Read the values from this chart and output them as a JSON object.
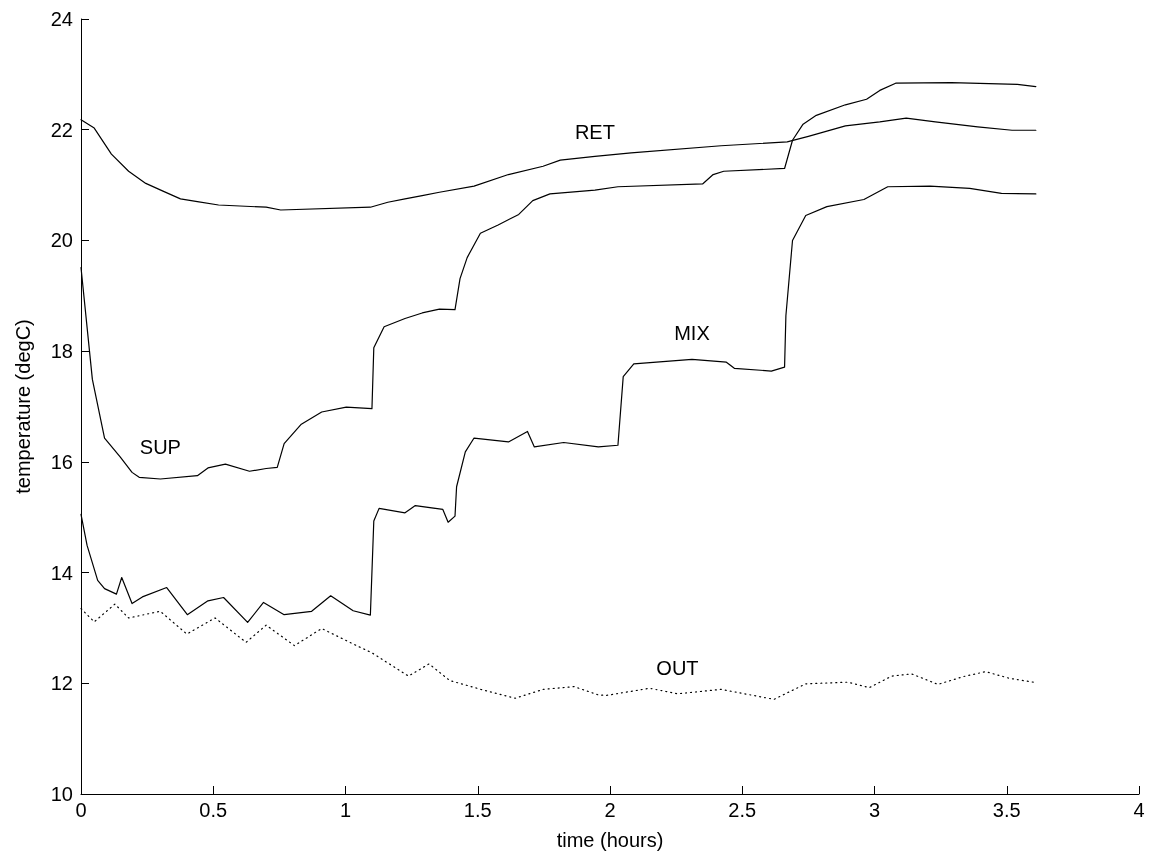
{
  "chart_data": {
    "type": "line",
    "xlabel": "time (hours)",
    "ylabel": "temperature (degC)",
    "xlim": [
      0,
      4
    ],
    "xticks": [
      0,
      0.5,
      1,
      1.5,
      2,
      2.5,
      3,
      3.5,
      4
    ],
    "ylim": [
      10,
      24
    ],
    "yticks": [
      10,
      12,
      14,
      16,
      18,
      20,
      22,
      24
    ],
    "grid": false,
    "legend": false,
    "marker": "none",
    "series": [
      {
        "name": "RET",
        "color": "#000000",
        "line_style": "solid",
        "x": [
          0,
          0.05,
          0.115,
          0.18,
          0.245,
          0.31,
          0.376,
          0.44,
          0.52,
          0.7,
          0.755,
          1.094,
          1.16,
          1.225,
          1.29,
          1.355,
          1.486,
          1.616,
          1.747,
          1.812,
          1.943,
          2.08,
          2.42,
          2.67,
          2.75,
          2.89,
          3.02,
          3.12,
          3.23,
          3.39,
          3.52,
          3.61
        ],
        "values": [
          22.18,
          22.03,
          21.56,
          21.25,
          21.03,
          20.89,
          20.75,
          20.7,
          20.64,
          20.6,
          20.55,
          20.6,
          20.69,
          20.75,
          20.81,
          20.87,
          20.98,
          21.19,
          21.34,
          21.45,
          21.52,
          21.58,
          21.71,
          21.78,
          21.88,
          22.07,
          22.14,
          22.21,
          22.14,
          22.05,
          21.99,
          21.99
        ]
      },
      {
        "name": "SUP",
        "color": "#000000",
        "line_style": "solid",
        "x": [
          0,
          0.043,
          0.089,
          0.148,
          0.193,
          0.22,
          0.3,
          0.44,
          0.48,
          0.546,
          0.637,
          0.7,
          0.742,
          0.768,
          0.833,
          0.91,
          1.003,
          1.1,
          1.107,
          1.146,
          1.225,
          1.29,
          1.355,
          1.414,
          1.433,
          1.46,
          1.51,
          1.577,
          1.655,
          1.708,
          1.773,
          1.943,
          2.03,
          2.35,
          2.39,
          2.43,
          2.66,
          2.69,
          2.73,
          2.78,
          2.89,
          2.97,
          3.02,
          3.08,
          3.29,
          3.54,
          3.61
        ],
        "values": [
          19.51,
          17.49,
          16.43,
          16.09,
          15.81,
          15.72,
          15.69,
          15.75,
          15.89,
          15.96,
          15.83,
          15.88,
          15.9,
          16.33,
          16.68,
          16.9,
          16.99,
          16.96,
          18.06,
          18.44,
          18.59,
          18.69,
          18.76,
          18.75,
          19.31,
          19.69,
          20.13,
          20.28,
          20.47,
          20.72,
          20.84,
          20.91,
          20.97,
          21.02,
          21.19,
          21.25,
          21.3,
          21.81,
          22.1,
          22.26,
          22.45,
          22.55,
          22.71,
          22.84,
          22.85,
          22.82,
          22.78
        ]
      },
      {
        "name": "MIX",
        "color": "#000000",
        "line_style": "solid",
        "x": [
          0,
          0.023,
          0.063,
          0.089,
          0.134,
          0.154,
          0.193,
          0.232,
          0.324,
          0.402,
          0.48,
          0.539,
          0.63,
          0.69,
          0.768,
          0.872,
          0.944,
          1.029,
          1.094,
          1.107,
          1.127,
          1.225,
          1.264,
          1.368,
          1.388,
          1.414,
          1.42,
          1.453,
          1.486,
          1.616,
          1.688,
          1.714,
          1.825,
          1.956,
          2.03,
          2.05,
          2.09,
          2.31,
          2.44,
          2.47,
          2.61,
          2.66,
          2.665,
          2.69,
          2.74,
          2.82,
          2.96,
          3.05,
          3.21,
          3.36,
          3.48,
          3.61
        ],
        "values": [
          15.05,
          14.49,
          13.86,
          13.71,
          13.61,
          13.91,
          13.44,
          13.56,
          13.73,
          13.24,
          13.49,
          13.55,
          13.1,
          13.46,
          13.24,
          13.3,
          13.58,
          13.31,
          13.23,
          14.93,
          15.16,
          15.08,
          15.21,
          15.14,
          14.91,
          15.02,
          15.55,
          16.18,
          16.43,
          16.36,
          16.55,
          16.27,
          16.35,
          16.27,
          16.3,
          17.54,
          17.77,
          17.85,
          17.8,
          17.69,
          17.64,
          17.71,
          18.64,
          20.0,
          20.45,
          20.61,
          20.74,
          20.97,
          20.98,
          20.94,
          20.85,
          20.84
        ]
      },
      {
        "name": "OUT",
        "color": "#000000",
        "line_style": "dotted",
        "x": [
          0,
          0.05,
          0.128,
          0.18,
          0.3,
          0.4,
          0.507,
          0.624,
          0.7,
          0.807,
          0.91,
          1.029,
          1.1,
          1.238,
          1.316,
          1.394,
          1.512,
          1.642,
          1.747,
          1.864,
          1.956,
          1.985,
          2.15,
          2.255,
          2.42,
          2.62,
          2.74,
          2.9,
          2.98,
          3.065,
          3.14,
          3.24,
          3.335,
          3.42,
          3.51,
          3.6
        ],
        "values": [
          13.35,
          13.11,
          13.43,
          13.18,
          13.3,
          12.89,
          13.18,
          12.74,
          13.05,
          12.68,
          12.99,
          12.71,
          12.55,
          12.13,
          12.35,
          12.05,
          11.89,
          11.73,
          11.89,
          11.94,
          11.79,
          11.78,
          11.91,
          11.81,
          11.89,
          11.71,
          11.99,
          12.02,
          11.92,
          12.13,
          12.17,
          11.98,
          12.12,
          12.21,
          12.09,
          12.02
        ]
      }
    ]
  }
}
